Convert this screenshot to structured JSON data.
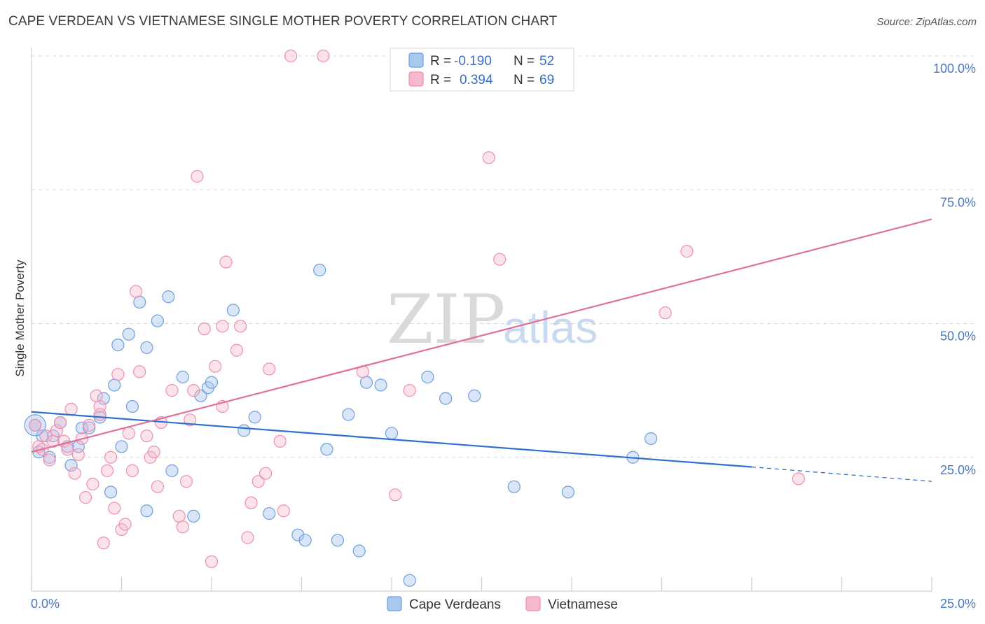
{
  "title": "CAPE VERDEAN VS VIETNAMESE SINGLE MOTHER POVERTY CORRELATION CHART",
  "source": "Source: ZipAtlas.com",
  "watermark": {
    "zip": "ZIP",
    "atlas": "atlas"
  },
  "colors": {
    "blue_fill": "#a9c8f0",
    "blue_stroke": "#6f9ee0",
    "blue_line": "#2f6fd0",
    "pink_fill": "#f6b8cc",
    "pink_stroke": "#ee8fae",
    "pink_line": "#e0709a",
    "grid": "#d8d8d8"
  },
  "legend": {
    "rows": [
      {
        "r_label": "R =",
        "r_value": "-0.190",
        "n_label": "N =",
        "n_value": "52"
      },
      {
        "r_label": "R =",
        "r_value": "0.394",
        "n_label": "N =",
        "n_value": "69"
      }
    ]
  },
  "chart_data": {
    "type": "scatter",
    "xlabel": "",
    "ylabel": "Single Mother Poverty",
    "xlim": [
      0,
      25
    ],
    "ylim": [
      0,
      100
    ],
    "x_tick_labels": [
      "0.0%",
      "25.0%"
    ],
    "y_tick_labels": [
      "25.0%",
      "50.0%",
      "75.0%",
      "100.0%"
    ],
    "y_ticks": [
      25,
      50,
      75,
      100
    ],
    "legend_position": "top-center",
    "series": [
      {
        "name": "Cape Verdeans",
        "color": "#a9c8f0",
        "trend": {
          "x0": 0,
          "y0": 33.5,
          "x1": 20,
          "y1": 23.2,
          "dashed_to_x": 25,
          "dashed_to_y": 20.5
        },
        "points": [
          [
            0.1,
            31
          ],
          [
            0.2,
            26
          ],
          [
            0.5,
            25
          ],
          [
            0.6,
            29
          ],
          [
            0.8,
            31.5
          ],
          [
            1.1,
            23.5
          ],
          [
            1.3,
            27
          ],
          [
            1.4,
            30.5
          ],
          [
            1.6,
            30.5
          ],
          [
            1.9,
            32.5
          ],
          [
            2.0,
            36
          ],
          [
            2.2,
            18.5
          ],
          [
            2.3,
            38.5
          ],
          [
            2.4,
            46
          ],
          [
            2.5,
            27
          ],
          [
            2.7,
            48
          ],
          [
            2.8,
            34.5
          ],
          [
            3.0,
            54
          ],
          [
            3.2,
            45.5
          ],
          [
            3.2,
            15
          ],
          [
            3.5,
            50.5
          ],
          [
            3.8,
            55
          ],
          [
            3.9,
            22.5
          ],
          [
            4.2,
            40
          ],
          [
            4.5,
            14
          ],
          [
            4.7,
            36.5
          ],
          [
            4.9,
            38
          ],
          [
            5.0,
            39
          ],
          [
            5.6,
            52.5
          ],
          [
            5.9,
            30
          ],
          [
            6.2,
            32.5
          ],
          [
            6.6,
            14.5
          ],
          [
            7.4,
            10.5
          ],
          [
            7.6,
            9.5
          ],
          [
            8.0,
            60
          ],
          [
            8.2,
            26.5
          ],
          [
            8.5,
            9.5
          ],
          [
            8.8,
            33
          ],
          [
            9.1,
            7.5
          ],
          [
            9.3,
            39
          ],
          [
            9.7,
            38.5
          ],
          [
            10.0,
            29.5
          ],
          [
            10.5,
            2
          ],
          [
            11.0,
            40
          ],
          [
            11.5,
            36
          ],
          [
            12.3,
            36.5
          ],
          [
            13.4,
            19.5
          ],
          [
            14.9,
            18.5
          ],
          [
            16.7,
            25
          ],
          [
            17.2,
            28.5
          ],
          [
            0.3,
            29
          ],
          [
            1.0,
            27
          ]
        ]
      },
      {
        "name": "Vietnamese",
        "color": "#f6b8cc",
        "trend": {
          "x0": 0,
          "y0": 26,
          "x1": 25,
          "y1": 69.5
        },
        "points": [
          [
            0.1,
            31
          ],
          [
            0.2,
            27
          ],
          [
            0.3,
            26.5
          ],
          [
            0.4,
            29
          ],
          [
            0.5,
            24.5
          ],
          [
            0.6,
            28
          ],
          [
            0.7,
            30
          ],
          [
            0.8,
            31.5
          ],
          [
            0.9,
            28
          ],
          [
            1.0,
            26.5
          ],
          [
            1.1,
            34
          ],
          [
            1.2,
            22
          ],
          [
            1.3,
            25.5
          ],
          [
            1.4,
            28.5
          ],
          [
            1.5,
            17.5
          ],
          [
            1.6,
            31
          ],
          [
            1.7,
            20
          ],
          [
            1.8,
            36.5
          ],
          [
            1.9,
            34.5
          ],
          [
            2.0,
            9
          ],
          [
            2.1,
            22.5
          ],
          [
            2.2,
            25
          ],
          [
            2.3,
            15.5
          ],
          [
            2.4,
            40.5
          ],
          [
            2.5,
            11.5
          ],
          [
            2.6,
            12.5
          ],
          [
            2.7,
            29.5
          ],
          [
            2.9,
            56
          ],
          [
            3.0,
            41
          ],
          [
            3.2,
            29
          ],
          [
            3.3,
            25
          ],
          [
            3.4,
            26
          ],
          [
            3.5,
            19.5
          ],
          [
            3.6,
            31.5
          ],
          [
            3.9,
            37.5
          ],
          [
            4.1,
            14
          ],
          [
            4.2,
            12
          ],
          [
            4.3,
            20.5
          ],
          [
            4.4,
            32
          ],
          [
            4.5,
            37.5
          ],
          [
            4.6,
            77.5
          ],
          [
            4.8,
            49
          ],
          [
            5.0,
            5.5
          ],
          [
            5.1,
            42
          ],
          [
            5.3,
            34.5
          ],
          [
            5.3,
            49.5
          ],
          [
            5.4,
            61.5
          ],
          [
            5.7,
            45
          ],
          [
            5.8,
            49.5
          ],
          [
            6.0,
            10
          ],
          [
            6.1,
            16.5
          ],
          [
            6.3,
            20.5
          ],
          [
            6.5,
            22
          ],
          [
            6.6,
            41.5
          ],
          [
            6.9,
            28
          ],
          [
            7.0,
            15
          ],
          [
            7.2,
            100
          ],
          [
            8.1,
            100
          ],
          [
            9.2,
            41
          ],
          [
            10.1,
            18
          ],
          [
            10.5,
            37.5
          ],
          [
            10.9,
            100
          ],
          [
            12.7,
            81
          ],
          [
            13.0,
            62
          ],
          [
            17.6,
            52
          ],
          [
            18.2,
            63.5
          ],
          [
            21.3,
            21
          ],
          [
            2.8,
            22.5
          ],
          [
            1.9,
            33
          ]
        ]
      }
    ]
  },
  "bottom_legend": [
    "Cape Verdeans",
    "Vietnamese"
  ]
}
